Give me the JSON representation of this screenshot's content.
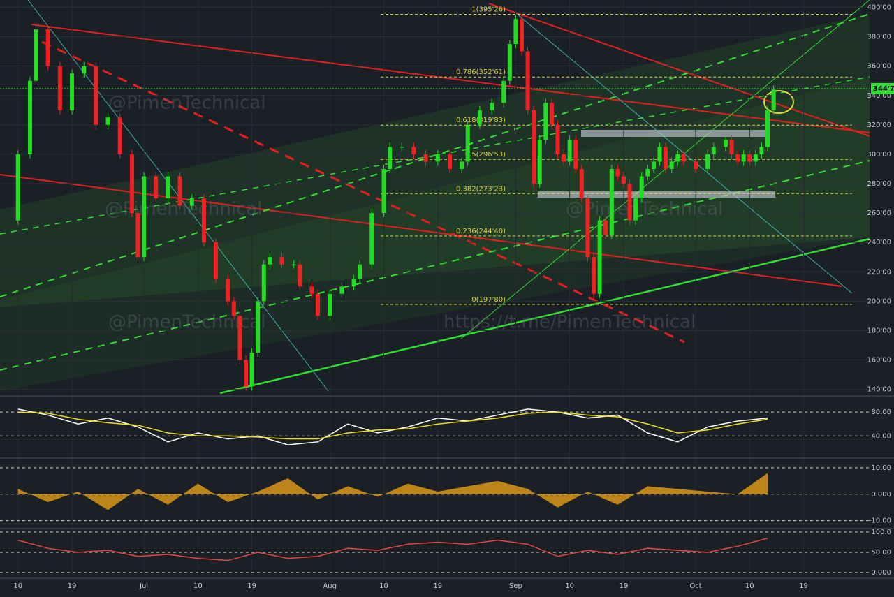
{
  "chart_data": {
    "type": "candlestick",
    "watermarks": [
      "@PimenTechnical",
      "https://t.me/PimenTechnical",
      "@PimenTechnical",
      "@PimenTechnical",
      "@PimenTechnical"
    ],
    "x": [
      -2,
      0,
      2,
      3,
      5,
      7,
      9,
      11,
      13,
      15,
      17,
      19,
      20,
      21,
      23,
      25,
      27,
      29,
      31,
      33,
      35,
      36,
      37,
      38,
      39,
      40,
      41,
      42,
      44,
      46,
      47,
      49,
      50,
      52,
      54,
      56,
      57,
      59,
      61,
      62,
      64,
      66,
      68,
      70,
      72,
      74,
      75,
      77,
      79,
      81,
      82,
      83,
      84,
      85,
      86,
      87,
      88,
      89,
      90,
      91,
      92,
      93,
      94,
      95,
      96,
      97,
      98,
      99,
      100,
      101,
      102,
      103,
      104,
      105,
      106,
      107,
      108,
      109,
      110,
      111,
      113,
      115,
      116,
      118,
      119,
      120,
      121,
      122,
      123,
      124,
      125,
      126
    ],
    "values": [
      255,
      300,
      350,
      385,
      360,
      330,
      355,
      360,
      320,
      325,
      300,
      260,
      230,
      285,
      270,
      285,
      265,
      270,
      240,
      215,
      200,
      190,
      160,
      142,
      165,
      200,
      225,
      230,
      225,
      225,
      210,
      205,
      190,
      205,
      210,
      215,
      225,
      260,
      290,
      305,
      305,
      300,
      295,
      300,
      290,
      295,
      320,
      330,
      335,
      350,
      375,
      392,
      370,
      330,
      280,
      310,
      335,
      320,
      300,
      295,
      310,
      290,
      270,
      230,
      205,
      255,
      245,
      290,
      285,
      280,
      255,
      270,
      285,
      290,
      295,
      305,
      290,
      295,
      300,
      295,
      290,
      300,
      305,
      310,
      300,
      295,
      300,
      295,
      300,
      305,
      330,
      344
    ],
    "up_color": "#22dd22",
    "down_color": "#ee2222",
    "xlim": [
      -3,
      142
    ],
    "xticks": [
      {
        "value": 0,
        "label": "10"
      },
      {
        "value": 9,
        "label": "19"
      },
      {
        "value": 21,
        "label": "Jul"
      },
      {
        "value": 30,
        "label": "10"
      },
      {
        "value": 39,
        "label": "19"
      },
      {
        "value": 52,
        "label": "Aug"
      },
      {
        "value": 61,
        "label": "10"
      },
      {
        "value": 70,
        "label": "19"
      },
      {
        "value": 83,
        "label": "Sep"
      },
      {
        "value": 92,
        "label": "10"
      },
      {
        "value": 101,
        "label": "19"
      },
      {
        "value": 113,
        "label": "Oct"
      },
      {
        "value": 122,
        "label": "10"
      },
      {
        "value": 131,
        "label": "19"
      }
    ],
    "ylim": [
      136,
      405
    ],
    "yticks": [
      {
        "value": 140,
        "label": "140'00"
      },
      {
        "value": 160,
        "label": "160'00"
      },
      {
        "value": 180,
        "label": "180'00"
      },
      {
        "value": 200,
        "label": "200'00"
      },
      {
        "value": 220,
        "label": "220'00"
      },
      {
        "value": 240,
        "label": "240'00"
      },
      {
        "value": 260,
        "label": "260'00"
      },
      {
        "value": 280,
        "label": "280'00"
      },
      {
        "value": 300,
        "label": "300'00"
      },
      {
        "value": 320,
        "label": "320'00"
      },
      {
        "value": 340,
        "label": "340'00"
      },
      {
        "value": 360,
        "label": "360'00"
      },
      {
        "value": 380,
        "label": "380'00"
      },
      {
        "value": 400,
        "label": "400'00"
      }
    ],
    "last_price": {
      "value": 344.7,
      "label": "344'7"
    },
    "fib_levels": [
      {
        "value": 395.26,
        "label": "1(395'26)"
      },
      {
        "value": 352.61,
        "label": "0.786(352'61)"
      },
      {
        "value": 319.83,
        "label": "0.618(319'83)"
      },
      {
        "value": 296.53,
        "label": "0.5(296'53)"
      },
      {
        "value": 273.23,
        "label": "0.382(273'23)"
      },
      {
        "value": 244.4,
        "label": "0.236(244'40)"
      },
      {
        "value": 197.8,
        "label": "0(197'80)"
      }
    ],
    "panels": [
      {
        "type": "line",
        "x": [
          0,
          5,
          10,
          15,
          20,
          25,
          30,
          35,
          40,
          45,
          50,
          55,
          60,
          65,
          70,
          75,
          80,
          85,
          90,
          95,
          100,
          105,
          110,
          115,
          120,
          125
        ],
        "ylim": [
          4,
          106
        ],
        "yticks": [
          {
            "value": 80,
            "label": "80.00"
          },
          {
            "value": 40,
            "label": "40.00"
          }
        ],
        "series": [
          {
            "color": "#ffffff",
            "values": [
              85,
              75,
              60,
              70,
              55,
              30,
              45,
              35,
              40,
              25,
              30,
              60,
              45,
              55,
              70,
              65,
              75,
              85,
              80,
              70,
              75,
              45,
              30,
              55,
              65,
              70
            ]
          },
          {
            "color": "#e8e020",
            "values": [
              80,
              78,
              68,
              62,
              58,
              45,
              40,
              40,
              38,
              35,
              35,
              45,
              50,
              52,
              60,
              65,
              70,
              78,
              80,
              75,
              72,
              60,
              45,
              50,
              60,
              68
            ]
          }
        ]
      },
      {
        "type": "area",
        "x": [
          0,
          5,
          10,
          15,
          20,
          25,
          30,
          35,
          40,
          45,
          50,
          55,
          60,
          65,
          70,
          75,
          80,
          85,
          90,
          95,
          100,
          105,
          110,
          115,
          120,
          125
        ],
        "ylim": [
          -13,
          13.4
        ],
        "yticks": [
          {
            "value": 10,
            "label": "10.00"
          },
          {
            "value": 0,
            "label": "0.000"
          },
          {
            "value": -10,
            "label": "-10.00"
          }
        ],
        "series": [
          {
            "color": "#d9961a",
            "values": [
              2,
              -3,
              1,
              -6,
              2,
              -4,
              4,
              -3,
              1,
              6,
              -2,
              3,
              -1,
              4,
              1,
              3,
              5,
              2,
              -5,
              1,
              -4,
              3,
              2,
              1,
              0,
              8
            ]
          }
        ]
      },
      {
        "type": "line",
        "x": [
          0,
          5,
          10,
          15,
          20,
          25,
          30,
          35,
          40,
          45,
          50,
          55,
          60,
          65,
          70,
          75,
          80,
          85,
          90,
          95,
          100,
          105,
          110,
          115,
          120,
          125
        ],
        "ylim": [
          -14,
          107
        ],
        "yticks": [
          {
            "value": 100,
            "label": "100.0"
          },
          {
            "value": 50,
            "label": "50.00"
          },
          {
            "value": 0,
            "label": "0.000"
          }
        ],
        "series": [
          {
            "color": "#e04848",
            "values": [
              80,
              60,
              50,
              55,
              40,
              45,
              35,
              30,
              50,
              35,
              40,
              60,
              55,
              70,
              75,
              70,
              80,
              70,
              40,
              55,
              45,
              60,
              55,
              50,
              65,
              85
            ]
          }
        ]
      }
    ]
  }
}
